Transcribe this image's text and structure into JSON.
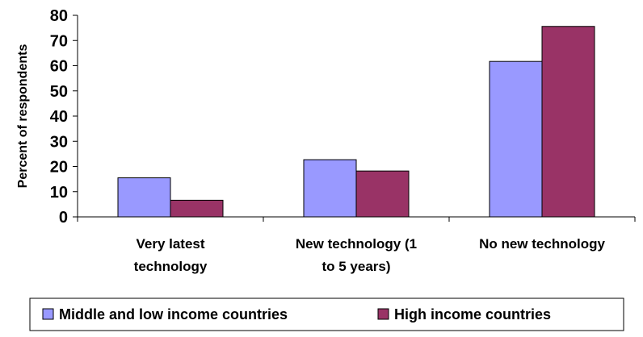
{
  "chart_data": {
    "type": "bar",
    "categories": [
      [
        "Very latest",
        "technology"
      ],
      [
        "New technology (1",
        "to 5 years)"
      ],
      [
        "No new technology"
      ]
    ],
    "series": [
      {
        "name": "Middle and low income countries",
        "values": [
          15.5,
          22.7,
          61.7
        ],
        "color": "#9999ff"
      },
      {
        "name": "High income countries",
        "values": [
          6.6,
          18.2,
          75.6
        ],
        "color": "#993366"
      }
    ],
    "ylabel": "Percent of respondents",
    "ylim": [
      0,
      80
    ],
    "yticks": [
      0,
      10,
      20,
      30,
      40,
      50,
      60,
      70,
      80
    ],
    "legend_position": "bottom",
    "grid": false
  }
}
